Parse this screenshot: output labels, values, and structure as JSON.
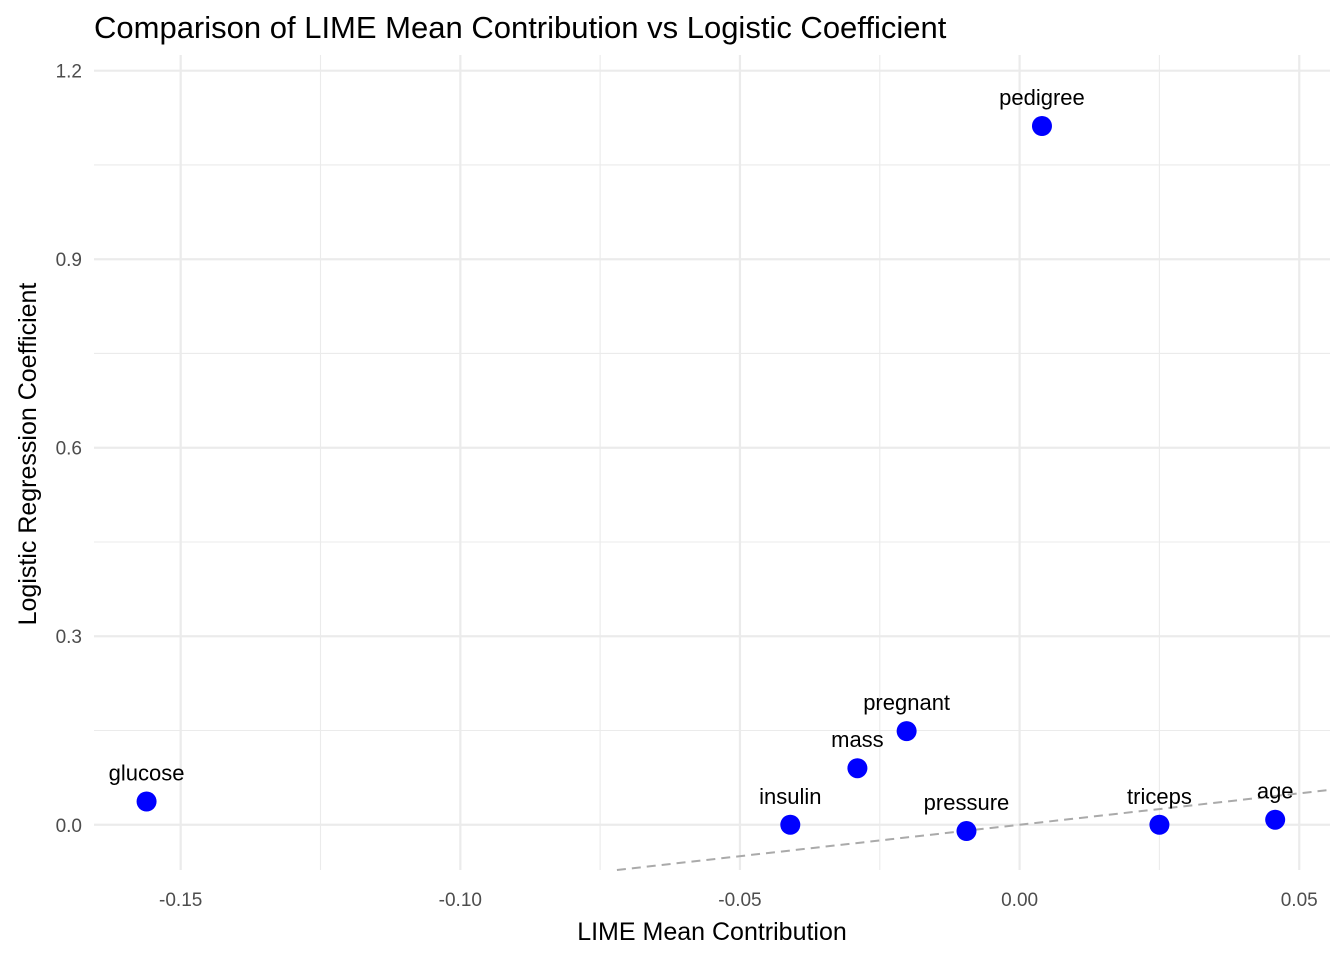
{
  "chart_data": {
    "type": "scatter",
    "title": "Comparison of LIME Mean Contribution vs Logistic Coefficient",
    "xlabel": "LIME Mean Contribution",
    "ylabel": "Logistic Regression Coefficient",
    "xlim": [
      -0.1655,
      0.0555
    ],
    "ylim": [
      -0.072,
      1.225
    ],
    "xticks": [
      -0.15,
      -0.1,
      -0.05,
      0.0,
      0.05
    ],
    "xtick_labels": [
      "-0.15",
      "-0.10",
      "-0.05",
      "0.00",
      "0.05"
    ],
    "yticks": [
      0.0,
      0.3,
      0.6,
      0.9,
      1.2
    ],
    "ytick_labels": [
      "0.0",
      "0.3",
      "0.6",
      "0.9",
      "1.2"
    ],
    "grid": true,
    "point_color": "#0000ff",
    "reference_line": {
      "slope": 1,
      "intercept": 0,
      "style": "dashed",
      "color": "#aaaaaa"
    },
    "points": [
      {
        "label": "glucose",
        "x": -0.1561,
        "y": 0.037
      },
      {
        "label": "insulin",
        "x": -0.041,
        "y": 0.0
      },
      {
        "label": "mass",
        "x": -0.029,
        "y": 0.09
      },
      {
        "label": "pregnant",
        "x": -0.0202,
        "y": 0.149
      },
      {
        "label": "pressure",
        "x": -0.0095,
        "y": -0.01
      },
      {
        "label": "pedigree",
        "x": 0.004,
        "y": 1.112
      },
      {
        "label": "triceps",
        "x": 0.025,
        "y": 0.0
      },
      {
        "label": "age",
        "x": 0.0457,
        "y": 0.008
      }
    ]
  }
}
